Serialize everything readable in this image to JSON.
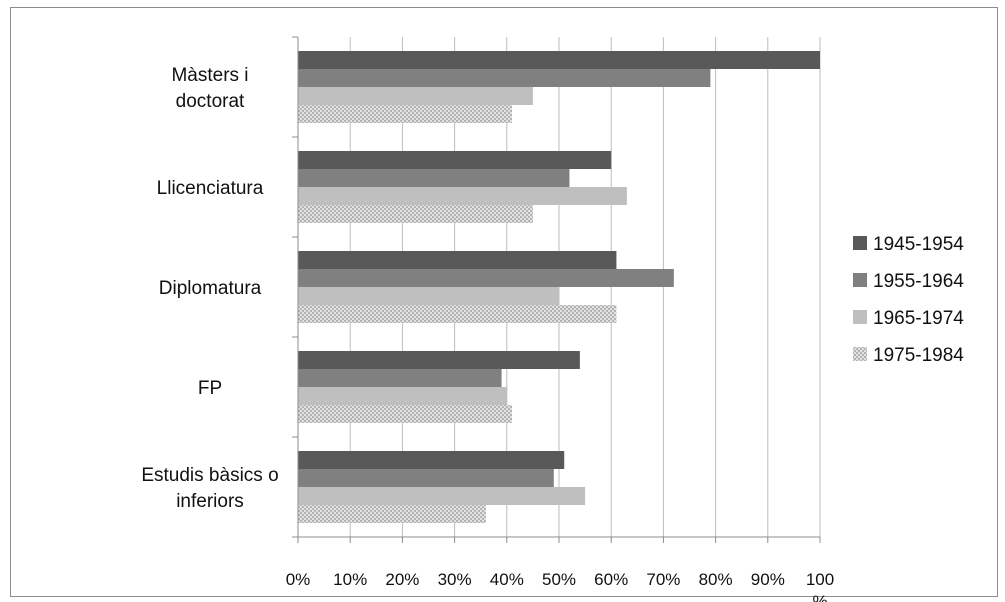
{
  "chart_data": {
    "type": "bar",
    "orientation": "horizontal",
    "categories": [
      [
        "Màsters i",
        "doctorat"
      ],
      [
        "Llicenciatura"
      ],
      [
        "Diplomatura"
      ],
      [
        "FP"
      ],
      [
        "Estudis bàsics o",
        "inferiors"
      ]
    ],
    "series": [
      {
        "name": "1945-1954",
        "color": "#595959",
        "pattern": "solid",
        "values": [
          100,
          60,
          61,
          54,
          51
        ]
      },
      {
        "name": "1955-1964",
        "color": "#808080",
        "pattern": "solid",
        "values": [
          79,
          52,
          72,
          39,
          49
        ]
      },
      {
        "name": "1965-1974",
        "color": "#bfbfbf",
        "pattern": "solid",
        "values": [
          45,
          63,
          50,
          40,
          55
        ]
      },
      {
        "name": "1975-1984",
        "color": "#d0d0d0",
        "pattern": "dotted",
        "values": [
          41,
          45,
          61,
          41,
          36
        ]
      }
    ],
    "xticks": [
      "0%",
      "10%",
      "20%",
      "30%",
      "40%",
      "50%",
      "60%",
      "70%",
      "80%",
      "90%",
      [
        "100",
        "%"
      ]
    ],
    "xlim": [
      0,
      100
    ],
    "grid": "vertical",
    "legend": "right",
    "title": "",
    "xlabel": "",
    "ylabel": ""
  }
}
